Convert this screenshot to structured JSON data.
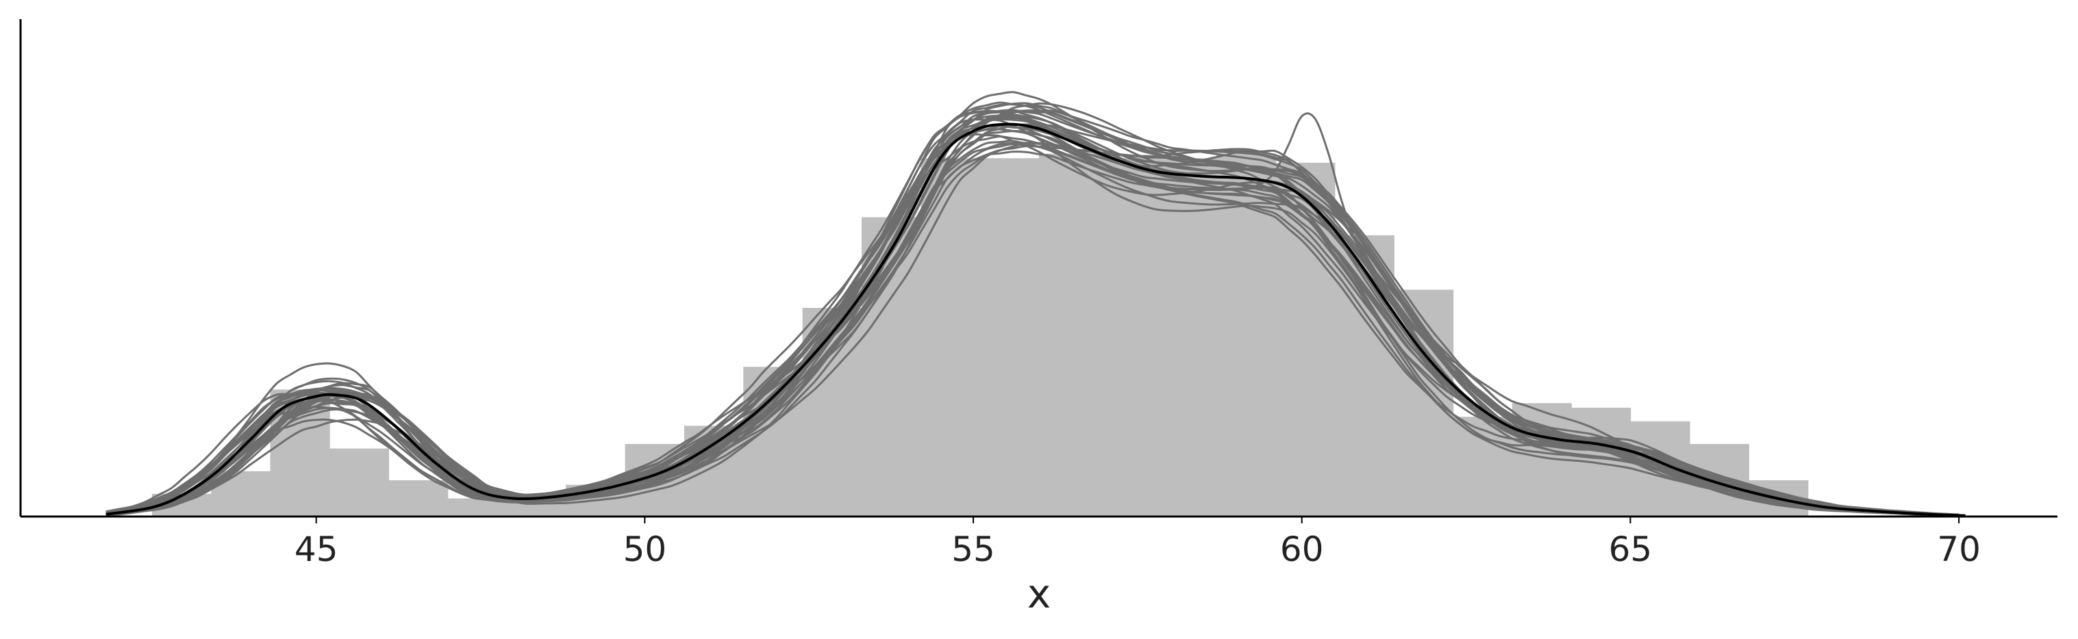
{
  "chart_data": {
    "type": "area",
    "title": "",
    "xlabel": "x",
    "ylabel": "",
    "xlim": [
      40.5,
      71.5
    ],
    "ylim": [
      0,
      1
    ],
    "xticks": [
      45,
      50,
      55,
      60,
      65,
      70
    ],
    "grid": false,
    "legend": "none",
    "colors": {
      "histogram": "#bebebe",
      "draws": "#6e6e6e",
      "mean": "#000000"
    },
    "histogram": {
      "bin_edges": [
        42.5,
        43.4,
        44.3,
        45.2,
        46.1,
        47.0,
        47.9,
        48.8,
        49.7,
        50.6,
        51.5,
        52.4,
        53.3,
        54.2,
        55.1,
        56.0,
        56.9,
        57.8,
        58.7,
        59.6,
        60.5,
        61.4,
        62.3,
        63.2,
        64.1,
        65.0,
        65.9,
        66.8,
        67.7
      ],
      "heights": [
        0.05,
        0.1,
        0.28,
        0.15,
        0.08,
        0.04,
        0.05,
        0.07,
        0.16,
        0.2,
        0.33,
        0.46,
        0.66,
        0.79,
        0.79,
        0.8,
        0.79,
        0.79,
        0.8,
        0.78,
        0.62,
        0.5,
        0.22,
        0.25,
        0.24,
        0.21,
        0.16,
        0.08
      ]
    },
    "mean_density": {
      "x": [
        41.8,
        42.5,
        43.0,
        43.5,
        44.0,
        44.5,
        45.0,
        45.3,
        45.7,
        46.2,
        46.8,
        47.4,
        48.0,
        48.7,
        49.5,
        50.3,
        51.0,
        51.7,
        52.4,
        53.1,
        53.8,
        54.5,
        55.0,
        55.5,
        56.0,
        56.6,
        57.2,
        57.8,
        58.5,
        59.2,
        59.8,
        60.3,
        60.8,
        61.3,
        61.8,
        62.3,
        62.8,
        63.3,
        63.9,
        64.5,
        65.1,
        65.7,
        66.2,
        66.8,
        67.4,
        68.0,
        68.7,
        69.4,
        70.1
      ],
      "y": [
        0.005,
        0.02,
        0.05,
        0.1,
        0.17,
        0.24,
        0.265,
        0.268,
        0.255,
        0.2,
        0.12,
        0.06,
        0.04,
        0.045,
        0.065,
        0.1,
        0.155,
        0.23,
        0.33,
        0.45,
        0.6,
        0.79,
        0.85,
        0.865,
        0.855,
        0.82,
        0.785,
        0.76,
        0.75,
        0.745,
        0.725,
        0.665,
        0.575,
        0.47,
        0.37,
        0.29,
        0.23,
        0.19,
        0.17,
        0.16,
        0.14,
        0.105,
        0.08,
        0.055,
        0.035,
        0.02,
        0.012,
        0.006,
        0.002
      ],
      "stroke_width": 4
    },
    "posterior_draws": {
      "count": 30,
      "y_spread": 0.07,
      "stroke_width": 3,
      "outlier_peak": {
        "x": 60.15,
        "height": 0.2,
        "width": 0.45
      }
    }
  }
}
